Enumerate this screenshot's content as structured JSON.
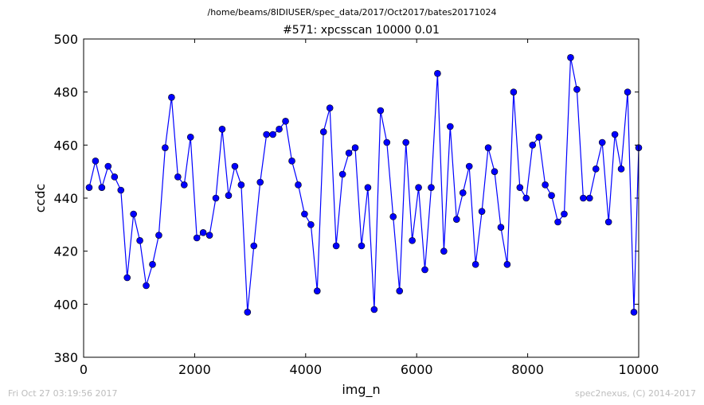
{
  "header": {
    "suptitle": "/home/beams/8IDIUSER/spec_data/2017/Oct2017/bates20171024"
  },
  "footer": {
    "timestamp": "Fri Oct 27 03:19:56 2017",
    "credit": "spec2nexus, (C) 2014-2017"
  },
  "chart_data": {
    "type": "line",
    "title": "#571: xpcsscan 10000 0.01",
    "xlabel": "img_n",
    "ylabel": "ccdc",
    "xlim": [
      0,
      10000
    ],
    "ylim": [
      380,
      500
    ],
    "xticks": [
      0,
      2000,
      4000,
      6000,
      8000,
      10000
    ],
    "yticks": [
      380,
      400,
      420,
      440,
      460,
      480,
      500
    ],
    "grid": false,
    "series": [
      {
        "color": "#0000ff",
        "marker": "circle",
        "x": [
          100,
          214,
          328,
          442,
          557,
          671,
          785,
          899,
          1013,
          1127,
          1241,
          1355,
          1469,
          1584,
          1698,
          1812,
          1926,
          2040,
          2154,
          2268,
          2382,
          2496,
          2611,
          2725,
          2839,
          2953,
          3067,
          3181,
          3295,
          3409,
          3523,
          3638,
          3752,
          3866,
          3980,
          4094,
          4208,
          4322,
          4436,
          4550,
          4665,
          4779,
          4893,
          5007,
          5121,
          5235,
          5349,
          5463,
          5577,
          5692,
          5806,
          5920,
          6034,
          6148,
          6262,
          6376,
          6490,
          6604,
          6719,
          6833,
          6947,
          7061,
          7175,
          7289,
          7403,
          7517,
          7631,
          7746,
          7860,
          7974,
          8088,
          8202,
          8316,
          8430,
          8544,
          8658,
          8773,
          8887,
          9001,
          9115,
          9229,
          9343,
          9457,
          9571,
          9685,
          9800,
          9914,
          10000
        ],
        "y": [
          444,
          454,
          444,
          452,
          448,
          443,
          410,
          434,
          424,
          407,
          415,
          426,
          459,
          478,
          448,
          445,
          463,
          425,
          427,
          426,
          440,
          466,
          441,
          452,
          445,
          397,
          422,
          446,
          464,
          464,
          466,
          469,
          454,
          445,
          434,
          430,
          405,
          465,
          474,
          422,
          449,
          457,
          459,
          422,
          444,
          398,
          473,
          461,
          433,
          405,
          461,
          424,
          444,
          413,
          444,
          487,
          420,
          467,
          432,
          442,
          452,
          415,
          435,
          459,
          450,
          429,
          415,
          480,
          444,
          440,
          460,
          463,
          445,
          441,
          431,
          434,
          493,
          481,
          440,
          440,
          451,
          461,
          431,
          464,
          451,
          480,
          397,
          459
        ]
      }
    ]
  }
}
